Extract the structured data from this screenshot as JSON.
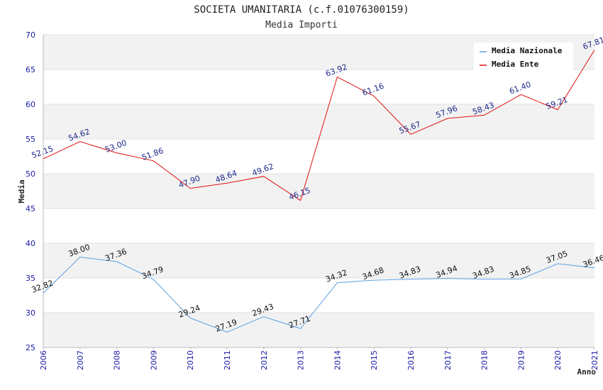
{
  "chart_data": {
    "type": "line",
    "title": "SOCIETA UMANITARIA (c.f.01076300159)",
    "subtitle": "Media Importi",
    "ylabel": "Media",
    "xlabel": "Anno",
    "ylim": [
      25,
      70
    ],
    "yticks": [
      25,
      30,
      35,
      40,
      45,
      50,
      55,
      60,
      65,
      70
    ],
    "grid": true,
    "legend_position": "top-right",
    "x": [
      "2006",
      "2007",
      "2008",
      "2009",
      "2010",
      "2011",
      "2012",
      "2013",
      "2014",
      "2015",
      "2016",
      "2017",
      "2018",
      "2019",
      "2020",
      "2021"
    ],
    "series": [
      {
        "name": "Media Nazionale",
        "color": "#5aa0e0",
        "values": [
          32.82,
          38.0,
          37.36,
          34.79,
          29.24,
          27.19,
          29.43,
          27.71,
          34.32,
          34.68,
          34.83,
          34.94,
          34.83,
          34.85,
          37.05,
          36.46
        ],
        "labels": [
          "32.82",
          "38.00",
          "37.36",
          "34.79",
          "29.24",
          "27.19",
          "29.43",
          "27.71",
          "34.32",
          "34.68",
          "34.83",
          "34.94",
          "34.83",
          "34.85",
          "37.05",
          "36.46"
        ]
      },
      {
        "name": "Media Ente",
        "color": "#e01010",
        "values": [
          52.15,
          54.62,
          53.0,
          51.86,
          47.9,
          48.64,
          49.62,
          46.15,
          63.92,
          61.16,
          55.67,
          57.96,
          58.43,
          61.4,
          59.21,
          67.81
        ],
        "labels": [
          "52.15",
          "54.62",
          "53.00",
          "51.86",
          "47.90",
          "48.64",
          "49.62",
          "46.15",
          "63.92",
          "61.16",
          "55.67",
          "57.96",
          "58.43",
          "61.40",
          "59.21",
          "67.81"
        ]
      }
    ]
  }
}
